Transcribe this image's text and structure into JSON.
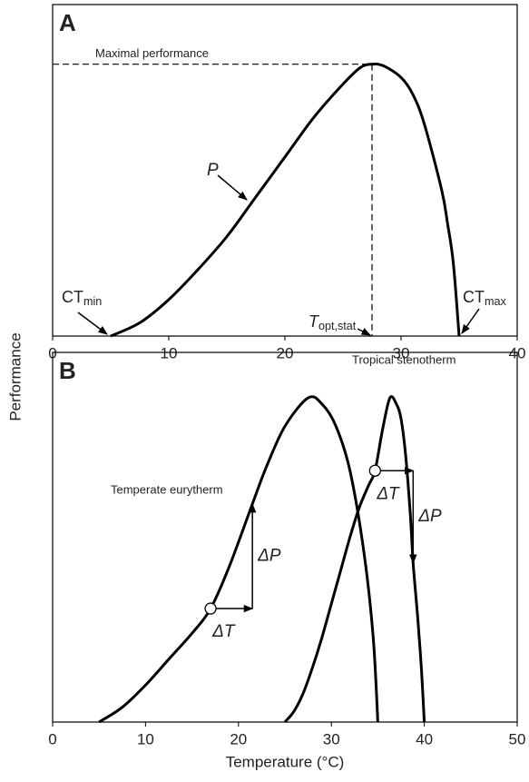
{
  "ylabel": "Performance",
  "chart_data": [
    {
      "type": "line",
      "panel": "A",
      "xlim": [
        0,
        40
      ],
      "xticks": [
        0,
        10,
        20,
        30,
        40
      ],
      "ylim": [
        0,
        1
      ],
      "series": [
        {
          "color": "#000000",
          "x": [
            5,
            7.5,
            10,
            12.5,
            15,
            17.5,
            20,
            22.5,
            25,
            26.5,
            27.5,
            28.5,
            30,
            31,
            32,
            33.5,
            34,
            34.5,
            35
          ],
          "values": [
            0,
            0.04,
            0.11,
            0.2,
            0.3,
            0.42,
            0.54,
            0.66,
            0.76,
            0.81,
            0.82,
            0.815,
            0.78,
            0.73,
            0.64,
            0.44,
            0.34,
            0.22,
            0
          ]
        }
      ],
      "annotations": [
        {
          "text": "Maximal performance"
        },
        {
          "text": "P"
        },
        {
          "text": "CT",
          "sub": "min"
        },
        {
          "text": "T",
          "sub": "opt,stat"
        },
        {
          "text": "CT",
          "sub": "max"
        }
      ]
    },
    {
      "type": "line",
      "panel": "B",
      "xlim": [
        0,
        50
      ],
      "xticks": [
        0,
        10,
        20,
        30,
        40,
        50
      ],
      "ylim": [
        0,
        1
      ],
      "xlabel": "Temperature (°C)",
      "series": [
        {
          "name": "Temperate eurytherm",
          "color": "#000000",
          "x": [
            5,
            7.5,
            10,
            12.5,
            15,
            17,
            19,
            21.5,
            23,
            25,
            27.5,
            29,
            30.5,
            32,
            33.5,
            34.5,
            35
          ],
          "values": [
            0,
            0.04,
            0.1,
            0.17,
            0.24,
            0.307,
            0.42,
            0.59,
            0.69,
            0.8,
            0.877,
            0.86,
            0.8,
            0.68,
            0.46,
            0.23,
            0
          ]
        },
        {
          "name": "Tropical stenotherm",
          "color": "#000000",
          "x": [
            25,
            26,
            27,
            28,
            29,
            30,
            31,
            32,
            33,
            34,
            34.7,
            35.5,
            36.3,
            37,
            37.5,
            38,
            38.5,
            38.8,
            39.3,
            39.7,
            40
          ],
          "values": [
            0,
            0.03,
            0.08,
            0.15,
            0.23,
            0.32,
            0.41,
            0.5,
            0.58,
            0.64,
            0.68,
            0.79,
            0.877,
            0.86,
            0.82,
            0.72,
            0.56,
            0.43,
            0.28,
            0.14,
            0
          ]
        }
      ],
      "shifts": [
        {
          "x": 17,
          "y": 0.307,
          "x2": 21.5,
          "y2": 0.59,
          "dx_label": "ΔT",
          "dy_label": "ΔP"
        },
        {
          "x": 34.7,
          "y": 0.68,
          "x2": 38.8,
          "y2": 0.43,
          "dx_label": "ΔT",
          "dy_label": "ΔP"
        }
      ]
    }
  ]
}
